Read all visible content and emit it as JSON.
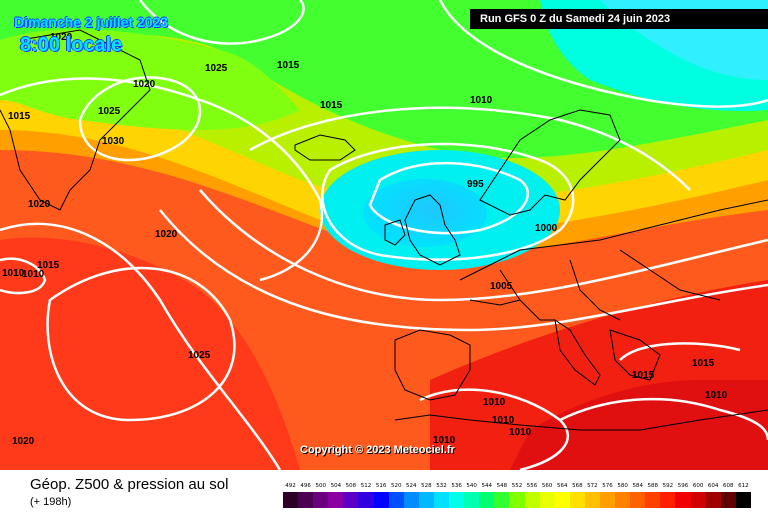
{
  "header": {
    "date_label": "Dimanche 2 juillet 2023",
    "time_label": "8:00 locale",
    "run_label": "Run GFS 0 Z du Samedi 24 juin 2023"
  },
  "map": {
    "copyright": "Copyright © 2023 Meteociel.fr",
    "isobar_labels": [
      "1020",
      "1025",
      "1015",
      "1020",
      "1025",
      "1030",
      "1015",
      "1015",
      "1010",
      "995",
      "1020",
      "1020",
      "1015",
      "1000",
      "1005",
      "1025",
      "1010",
      "1010",
      "1010",
      "1010",
      "1015",
      "1015",
      "1010",
      "1020",
      "1010",
      "1010"
    ]
  },
  "footer": {
    "title": "Géop. Z500 & pression au sol",
    "subtitle": "(+ 198h)"
  },
  "legend": {
    "values": [
      "492",
      "496",
      "500",
      "504",
      "508",
      "512",
      "516",
      "520",
      "524",
      "528",
      "532",
      "536",
      "540",
      "544",
      "548",
      "552",
      "556",
      "560",
      "564",
      "568",
      "572",
      "576",
      "580",
      "584",
      "588",
      "592",
      "596",
      "600",
      "604",
      "608",
      "612"
    ],
    "colors": [
      "#2d0028",
      "#4b0052",
      "#6a007a",
      "#8a00a4",
      "#5a00c8",
      "#3000e0",
      "#0000ff",
      "#0050ff",
      "#008cff",
      "#00b8ff",
      "#00e0ff",
      "#00ffe8",
      "#00ffb0",
      "#00ff70",
      "#30ff30",
      "#80ff00",
      "#c0ff00",
      "#eaff00",
      "#ffff00",
      "#ffe000",
      "#ffc000",
      "#ffa000",
      "#ff8000",
      "#ff6000",
      "#ff4000",
      "#ff2000",
      "#f00000",
      "#d00000",
      "#a00000",
      "#600000",
      "#000000"
    ]
  }
}
